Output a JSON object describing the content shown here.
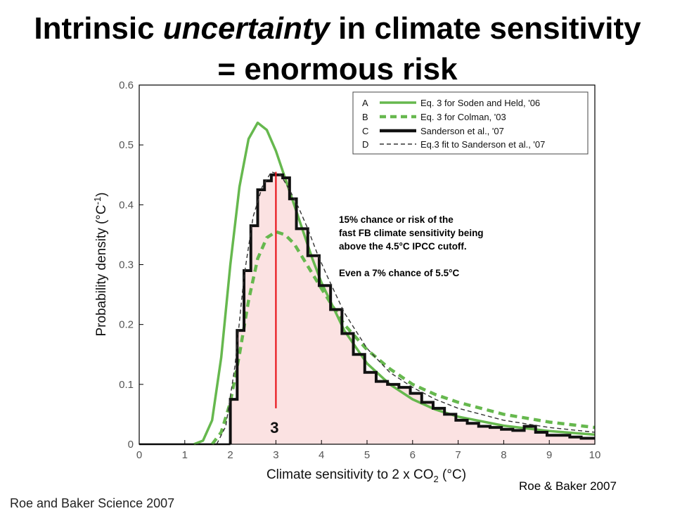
{
  "title": {
    "part1": "Intrinsic ",
    "part2": "uncertainty",
    "part3": " in climate sensitivity",
    "line2": "= enormous risk"
  },
  "annotation": {
    "line1": "15% chance or risk  of the",
    "line2": "fast FB climate sensitivity being",
    "line3": "above the 4.5°C IPCC cutoff.",
    "line4": "Even a 7% chance of 5.5°C"
  },
  "credit": "Roe & Baker 2007",
  "bottom_caption": "Roe and Baker Science 2007",
  "colors": {
    "green": "#66b84e",
    "histogram": "#111111",
    "fit": "#333333",
    "fill": "#fbe2e2",
    "marker": "#e8141c"
  },
  "chart_data": {
    "type": "line",
    "xlabel": "Climate sensitivity to 2 x CO",
    "xlabel_sub": "2",
    "xlabel_unit": " (°C)",
    "ylabel": "Probability density (°C",
    "ylabel_sup": "-1",
    "ylabel_end": ")",
    "xlim": [
      0,
      10
    ],
    "ylim": [
      0,
      0.6
    ],
    "xticks": [
      "0",
      "1",
      "2",
      "3",
      "4",
      "5",
      "6",
      "7",
      "8",
      "9",
      "10"
    ],
    "yticks": [
      "0",
      "0.1",
      "0.2",
      "0.3",
      "0.4",
      "0.5",
      "0.6"
    ],
    "legend_position": "top-right",
    "grid": false,
    "marker_line": {
      "x": 3,
      "y_top": 0.455,
      "y_bottom": 0.06,
      "label": "3"
    },
    "series": [
      {
        "letter": "A",
        "name": "Eq. 3 for Soden and Held, '06",
        "style": "solid-green",
        "x": [
          1.2,
          1.4,
          1.6,
          1.8,
          2.0,
          2.2,
          2.4,
          2.6,
          2.8,
          3.0,
          3.2,
          3.4,
          3.6,
          3.8,
          4.0,
          4.5,
          5.0,
          5.5,
          6.0,
          6.5,
          7.0,
          8.0,
          9.0,
          10.0
        ],
        "y": [
          0.0,
          0.006,
          0.04,
          0.145,
          0.3,
          0.43,
          0.51,
          0.537,
          0.525,
          0.49,
          0.445,
          0.4,
          0.355,
          0.31,
          0.27,
          0.19,
          0.135,
          0.1,
          0.075,
          0.058,
          0.046,
          0.031,
          0.022,
          0.016
        ]
      },
      {
        "letter": "B",
        "name": "Eq. 3 for Colman, '03",
        "style": "dashed-green",
        "x": [
          1.6,
          1.8,
          2.0,
          2.2,
          2.4,
          2.6,
          2.8,
          3.0,
          3.2,
          3.4,
          3.6,
          3.8,
          4.0,
          4.5,
          5.0,
          5.5,
          6.0,
          6.5,
          7.0,
          8.0,
          9.0,
          10.0
        ],
        "y": [
          0.0,
          0.02,
          0.07,
          0.15,
          0.24,
          0.31,
          0.345,
          0.355,
          0.35,
          0.335,
          0.31,
          0.285,
          0.26,
          0.2,
          0.158,
          0.126,
          0.1,
          0.083,
          0.07,
          0.05,
          0.037,
          0.028
        ]
      },
      {
        "letter": "C",
        "name": "Sanderson et al., '07",
        "style": "solid-black-histogram",
        "edges": [
          2.0,
          2.15,
          2.3,
          2.45,
          2.6,
          2.75,
          2.9,
          3.0,
          3.15,
          3.3,
          3.45,
          3.7,
          3.95,
          4.2,
          4.45,
          4.7,
          4.95,
          5.2,
          5.45,
          5.7,
          5.95,
          6.2,
          6.45,
          6.7,
          6.95,
          7.2,
          7.45,
          7.7,
          7.95,
          8.2,
          8.45,
          8.7,
          8.95,
          9.2,
          9.45,
          9.7,
          10.0
        ],
        "y": [
          0.075,
          0.19,
          0.29,
          0.365,
          0.425,
          0.44,
          0.45,
          0.45,
          0.445,
          0.41,
          0.36,
          0.315,
          0.265,
          0.225,
          0.185,
          0.15,
          0.12,
          0.105,
          0.1,
          0.095,
          0.085,
          0.07,
          0.06,
          0.05,
          0.04,
          0.035,
          0.03,
          0.028,
          0.025,
          0.023,
          0.03,
          0.02,
          0.015,
          0.015,
          0.012,
          0.01
        ]
      },
      {
        "letter": "D",
        "name": "Eq.3 fit to Sanderson et al., '07",
        "style": "dashed-black",
        "x": [
          1.7,
          1.9,
          2.1,
          2.3,
          2.5,
          2.7,
          2.9,
          3.1,
          3.3,
          3.5,
          3.7,
          3.9,
          4.1,
          4.5,
          5.0,
          5.5,
          6.0,
          6.5,
          7.0,
          8.0,
          9.0,
          10.0
        ],
        "y": [
          0.0,
          0.03,
          0.13,
          0.28,
          0.38,
          0.43,
          0.455,
          0.45,
          0.425,
          0.395,
          0.36,
          0.32,
          0.285,
          0.22,
          0.16,
          0.12,
          0.095,
          0.075,
          0.06,
          0.04,
          0.028,
          0.02
        ]
      }
    ]
  }
}
